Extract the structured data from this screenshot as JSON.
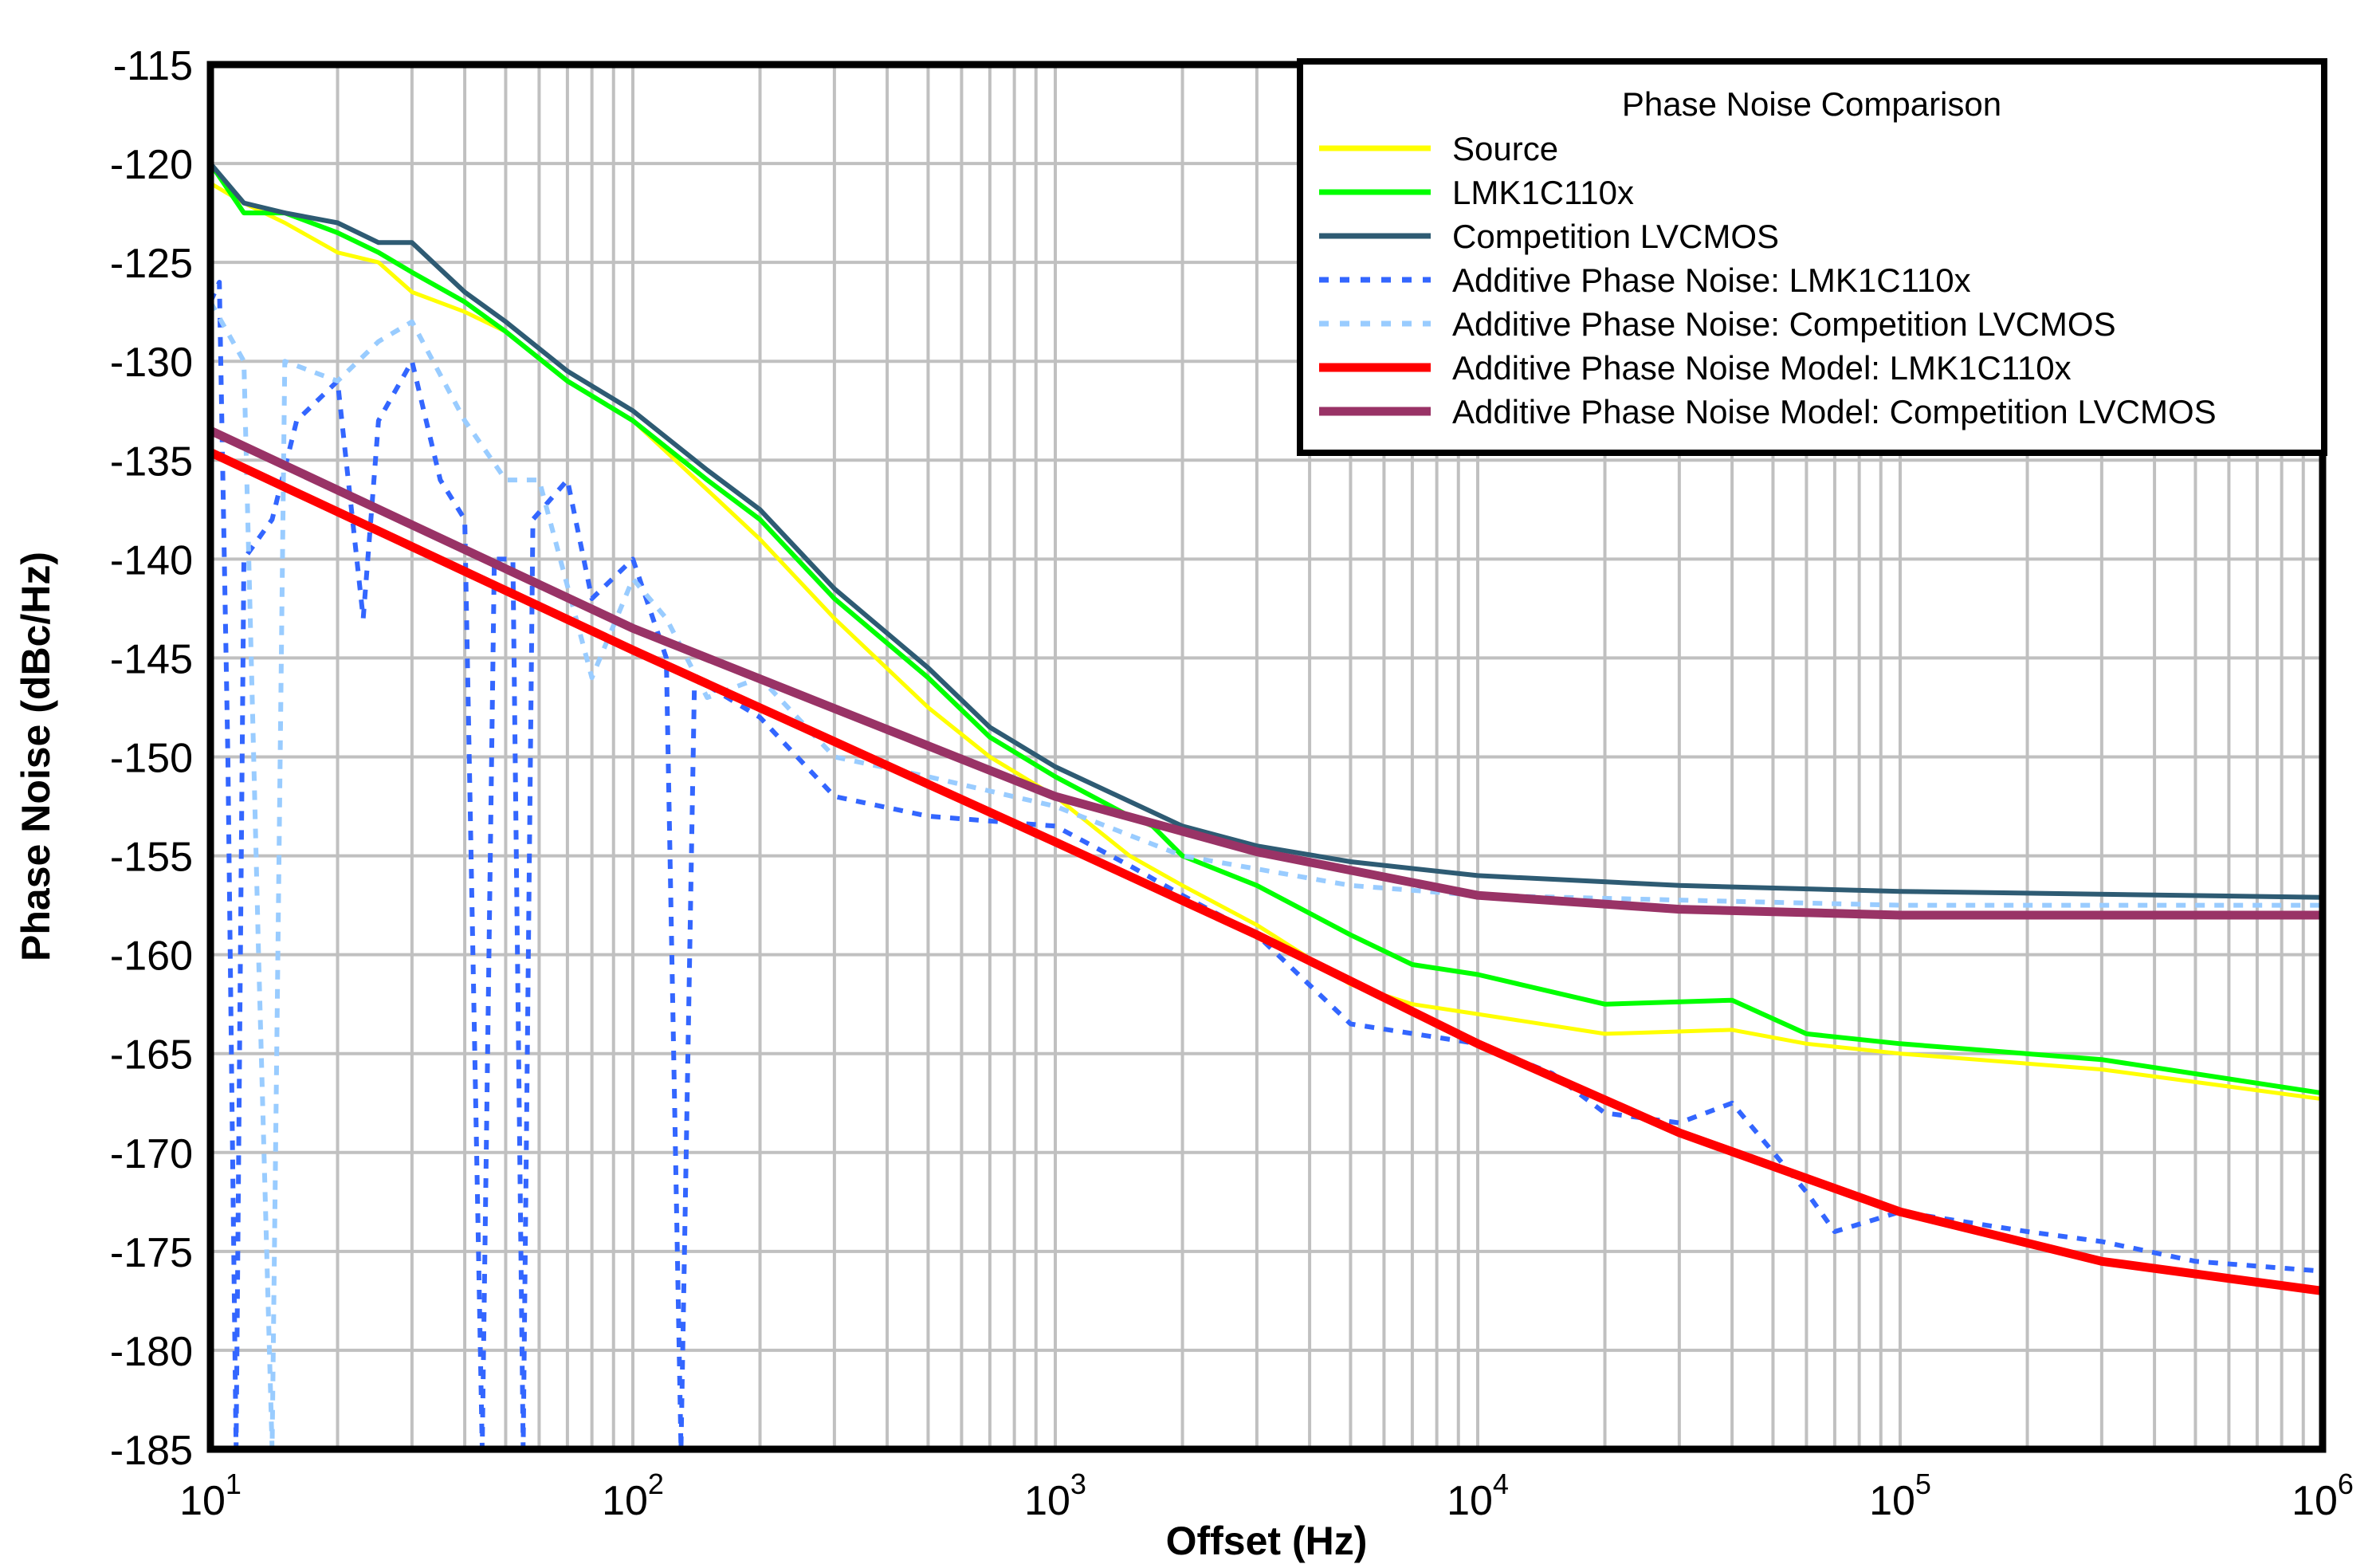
{
  "chart_data": {
    "type": "line",
    "title": "Phase Noise Comparison",
    "xlabel": "Offset (Hz)",
    "ylabel": "Phase Noise (dBc/Hz)",
    "xscale": "log",
    "xlim": [
      10,
      1000000
    ],
    "ylim": [
      -185,
      -115
    ],
    "x_tick_labels": [
      {
        "base": "10",
        "exp": "1"
      },
      {
        "base": "10",
        "exp": "2"
      },
      {
        "base": "10",
        "exp": "3"
      },
      {
        "base": "10",
        "exp": "4"
      },
      {
        "base": "10",
        "exp": "5"
      },
      {
        "base": "10",
        "exp": "6"
      }
    ],
    "y_ticks": [
      "-115",
      "-120",
      "-125",
      "-130",
      "-135",
      "-140",
      "-145",
      "-150",
      "-155",
      "-160",
      "-165",
      "-170",
      "-175",
      "-180",
      "-185"
    ],
    "grid": true,
    "legend_placement": "top-right",
    "series": [
      {
        "name": "Source",
        "color": "#ffff00",
        "style": "solid",
        "x": [
          10,
          12,
          15,
          20,
          25,
          30,
          40,
          50,
          70,
          100,
          150,
          200,
          300,
          500,
          700,
          1000,
          1500,
          2000,
          3000,
          5000,
          7000,
          10000,
          20000,
          40000,
          60000,
          100000,
          300000,
          1000000
        ],
        "y": [
          -121,
          -122,
          -123,
          -124.5,
          -125,
          -126.5,
          -127.5,
          -128.5,
          -131,
          -133,
          -136.5,
          -139,
          -143,
          -147.5,
          -150,
          -152,
          -155,
          -156.5,
          -158.5,
          -161.5,
          -162.5,
          -163,
          -164,
          -163.8,
          -164.5,
          -165,
          -165.8,
          -167.3
        ]
      },
      {
        "name": "LMK1C110x",
        "color": "#00ff00",
        "style": "solid",
        "x": [
          10,
          12,
          15,
          20,
          25,
          30,
          40,
          50,
          70,
          100,
          150,
          200,
          300,
          500,
          700,
          1000,
          1500,
          1700,
          2000,
          3000,
          5000,
          7000,
          10000,
          20000,
          40000,
          60000,
          100000,
          300000,
          1000000
        ],
        "y": [
          -120,
          -122.5,
          -122.5,
          -123.5,
          -124.5,
          -125.5,
          -127,
          -128.5,
          -131,
          -133,
          -136,
          -138,
          -142,
          -146,
          -149,
          -151,
          -153,
          -153.5,
          -155,
          -156.5,
          -159,
          -160.5,
          -161,
          -162.5,
          -162.3,
          -164,
          -164.5,
          -165.3,
          -167
        ]
      },
      {
        "name": "Competition LVCMOS",
        "color": "#2e5b73",
        "style": "solid",
        "x": [
          10,
          12,
          15,
          20,
          25,
          30,
          40,
          50,
          70,
          100,
          150,
          200,
          300,
          500,
          700,
          1000,
          2000,
          3000,
          5000,
          10000,
          30000,
          100000,
          1000000
        ],
        "y": [
          -120,
          -122,
          -122.5,
          -123,
          -124,
          -124,
          -126.5,
          -128,
          -130.5,
          -132.5,
          -135.5,
          -137.5,
          -141.5,
          -145.5,
          -148.5,
          -150.5,
          -153.5,
          -154.5,
          -155.3,
          -156,
          -156.5,
          -156.8,
          -157.1
        ]
      },
      {
        "name": "Additive Phase Noise: LMK1C110x",
        "color": "#3366ff",
        "style": "dotted",
        "x": [
          10,
          10.5,
          11,
          11.5,
          12,
          14,
          16,
          20,
          23,
          25,
          30,
          35,
          40,
          44,
          47,
          52,
          55,
          58,
          70,
          80,
          100,
          120,
          130,
          140,
          200,
          300,
          500,
          1000,
          1500,
          2000,
          3000,
          5000,
          10000,
          15000,
          20000,
          30000,
          40000,
          60000,
          70000,
          100000,
          200000,
          300000,
          500000,
          1000000
        ],
        "y": [
          -127,
          -126,
          -150,
          -185,
          -140,
          -138,
          -133,
          -131,
          -143,
          -133,
          -130,
          -136,
          -138,
          -185,
          -140,
          -140,
          -185,
          -138,
          -136,
          -142,
          -140,
          -145,
          -185,
          -146,
          -148,
          -152,
          -153,
          -153.5,
          -155.5,
          -157,
          -159,
          -163.5,
          -164.5,
          -166,
          -168,
          -168.5,
          -167.5,
          -172,
          -174,
          -173,
          -174,
          -174.5,
          -175.5,
          -176
        ]
      },
      {
        "name": "Additive Phase Noise: Competition LVCMOS",
        "color": "#99ccff",
        "style": "dotted",
        "x": [
          10,
          12,
          13,
          14,
          15,
          20,
          25,
          30,
          40,
          50,
          60,
          80,
          100,
          120,
          150,
          200,
          300,
          500,
          1000,
          2000,
          5000,
          10000,
          100000,
          1000000
        ],
        "y": [
          -127,
          -130,
          -160,
          -185,
          -130,
          -131,
          -129,
          -128,
          -133,
          -136,
          -136,
          -146,
          -141,
          -143,
          -147,
          -146,
          -150,
          -151,
          -152.5,
          -155,
          -156.5,
          -157,
          -157.5,
          -157.5
        ]
      },
      {
        "name": "Additive Phase Noise Model: LMK1C110x",
        "color": "#ff0000",
        "style": "solid",
        "x": [
          10,
          100,
          1000,
          3000,
          10000,
          30000,
          100000,
          300000,
          1000000
        ],
        "y": [
          -134.6,
          -144.6,
          -154.3,
          -159,
          -164.5,
          -169,
          -173,
          -175.5,
          -177
        ]
      },
      {
        "name": "Additive Phase Noise Model: Competition LVCMOS",
        "color": "#993366",
        "style": "solid",
        "x": [
          10,
          100,
          1000,
          3000,
          10000,
          30000,
          100000,
          1000000
        ],
        "y": [
          -133.5,
          -143.5,
          -152,
          -154.8,
          -157,
          -157.7,
          -158,
          -158
        ]
      }
    ]
  }
}
